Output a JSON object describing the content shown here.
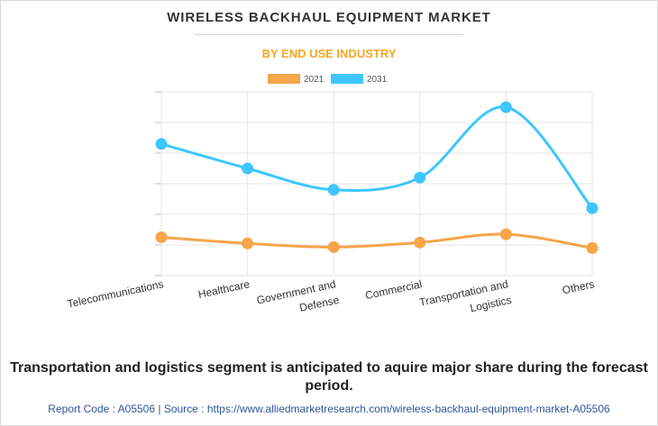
{
  "chart_data": {
    "type": "line",
    "title": "WIRELESS BACKHAUL EQUIPMENT MARKET",
    "subtitle": "BY END USE INDUSTRY",
    "categories": [
      "Telecommunications",
      "Healthcare",
      "Government and Defense",
      "Commercial",
      "Transportation and Logistics",
      "Others"
    ],
    "category_lines": [
      [
        "Telecommunications"
      ],
      [
        "Healthcare"
      ],
      [
        "Government and",
        "Defense"
      ],
      [
        "Commercial"
      ],
      [
        "Transportation and",
        "Logistics"
      ],
      [
        "Others"
      ]
    ],
    "series": [
      {
        "name": "2021",
        "values": [
          1.25,
          1.05,
          0.93,
          1.08,
          1.35,
          0.9
        ],
        "color": "#f5a54a"
      },
      {
        "name": "2031",
        "values": [
          4.3,
          3.5,
          2.8,
          3.2,
          5.5,
          2.2
        ],
        "color": "#3fc6ff"
      }
    ],
    "ylim": [
      0,
      6
    ],
    "grid": true,
    "legend_position": "top-center",
    "xlabel": "",
    "ylabel": ""
  },
  "footnote": "Transportation and logistics segment is anticipated to aquire major share during the forecast period.",
  "source": {
    "text": "Report Code : A05506  |  Source : https://www.alliedmarketresearch.com/wireless-backhaul-equipment-market-A05506"
  }
}
